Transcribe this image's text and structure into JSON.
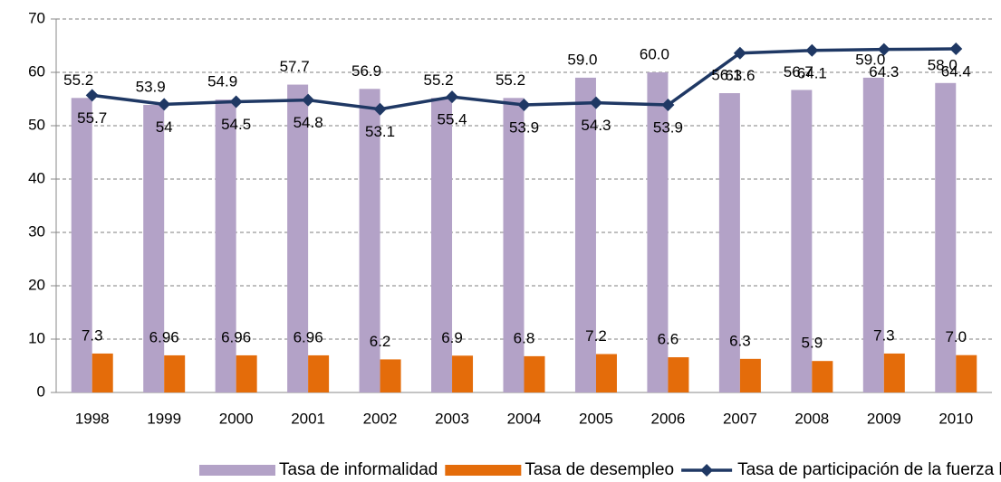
{
  "chart_data": {
    "type": "bar",
    "categories": [
      "1998",
      "1999",
      "2000",
      "2001",
      "2002",
      "2003",
      "2004",
      "2005",
      "2006",
      "2007",
      "2008",
      "2009",
      "2010"
    ],
    "series": [
      {
        "name": "Tasa de informalidad",
        "type": "bar",
        "color": "#b3a2c7",
        "values": [
          55.2,
          53.9,
          54.9,
          57.7,
          56.9,
          55.2,
          55.2,
          59.0,
          60.0,
          56.1,
          56.7,
          59.0,
          58.0
        ],
        "value_labels": [
          "55.2",
          "53.9",
          "54.9",
          "57.7",
          "56.9",
          "55.2",
          "55.2",
          "59.0",
          "60.0",
          "56.1",
          "56.7",
          "59.0",
          "58.0"
        ]
      },
      {
        "name": "Tasa de desempleo",
        "type": "bar",
        "color": "#e46c0a",
        "values": [
          7.3,
          6.96,
          6.96,
          6.96,
          6.2,
          6.9,
          6.8,
          7.2,
          6.6,
          6.3,
          5.9,
          7.3,
          7.0
        ],
        "value_labels": [
          "7.3",
          "6.96",
          "6.96",
          "6.96",
          "6.2",
          "6.9",
          "6.8",
          "7.2",
          "6.6",
          "6.3",
          "5.9",
          "7.3",
          "7.0"
        ]
      },
      {
        "name": "Tasa de participación de la fuerza laboral",
        "type": "line",
        "color": "#1f3864",
        "values": [
          55.7,
          54,
          54.5,
          54.8,
          53.1,
          55.4,
          53.9,
          54.3,
          53.9,
          63.6,
          64.1,
          64.3,
          64.4
        ],
        "value_labels": [
          "55.7",
          "54",
          "54.5",
          "54.8",
          "53.1",
          "55.4",
          "53.9",
          "54.3",
          "53.9",
          "63.6",
          "64.1",
          "64.3",
          "64.4"
        ]
      }
    ],
    "ylim": [
      0,
      70
    ],
    "yticks": [
      0,
      10,
      20,
      30,
      40,
      50,
      60,
      70
    ],
    "grid": true,
    "legend": "bottom"
  }
}
